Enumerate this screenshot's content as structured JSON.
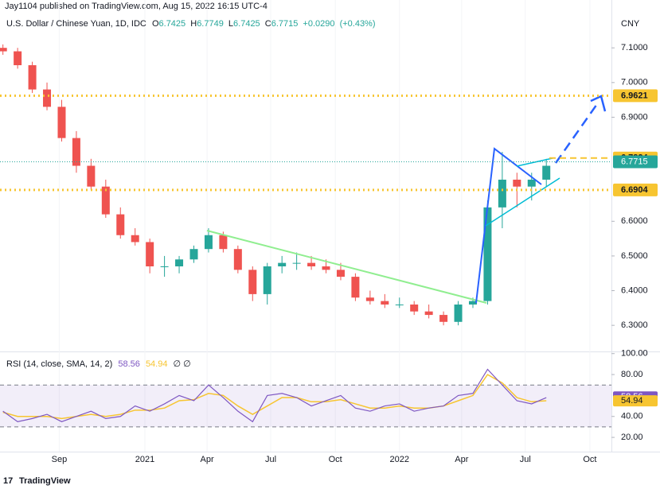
{
  "chart_data": {
    "type": "candlestick",
    "publisher": "Jay1104 published on TradingView.com, Aug 15, 2022 16:15 UTC-4",
    "symbol": "U.S. Dollar / Chinese Yuan, 1D, IDC",
    "ohlc_letters": [
      "O",
      "H",
      "L",
      "C"
    ],
    "last": {
      "open": 6.7425,
      "high": 6.7749,
      "low": 6.7425,
      "close": 6.7715,
      "change": {
        "value": 0.029,
        "label": "+0.0290"
      },
      "change_pct": {
        "value": 0.43,
        "label": "(+0.43%)"
      }
    },
    "currency": "CNY",
    "footer": "TradingView",
    "x": [
      -29,
      -26,
      -23,
      -20,
      -17,
      -14,
      -11,
      -8,
      -5,
      -2,
      1,
      4,
      7,
      10,
      13,
      16,
      19,
      22,
      25,
      28,
      31,
      34,
      37,
      40,
      43,
      46,
      49,
      52,
      55,
      58,
      61,
      64,
      67,
      70,
      73,
      76,
      79,
      82
    ],
    "open": [
      7.1,
      7.09,
      7.05,
      6.98,
      6.93,
      6.84,
      6.76,
      6.7,
      6.62,
      6.56,
      6.54,
      6.47,
      6.47,
      6.49,
      6.52,
      6.56,
      6.52,
      6.46,
      6.39,
      6.47,
      6.48,
      6.48,
      6.47,
      6.46,
      6.44,
      6.38,
      6.37,
      6.36,
      6.36,
      6.34,
      6.33,
      6.31,
      6.36,
      6.37,
      6.64,
      6.72,
      6.7,
      6.72
    ],
    "high": [
      7.11,
      7.1,
      7.06,
      7.0,
      6.95,
      6.86,
      6.78,
      6.72,
      6.64,
      6.58,
      6.55,
      6.5,
      6.5,
      6.53,
      6.58,
      6.57,
      6.53,
      6.47,
      6.48,
      6.5,
      6.51,
      6.5,
      6.49,
      6.48,
      6.45,
      6.4,
      6.39,
      6.38,
      6.37,
      6.36,
      6.34,
      6.37,
      6.38,
      6.66,
      6.8,
      6.74,
      6.74,
      6.78
    ],
    "low": [
      7.08,
      7.04,
      6.97,
      6.92,
      6.83,
      6.74,
      6.69,
      6.61,
      6.55,
      6.53,
      6.45,
      6.44,
      6.45,
      6.48,
      6.51,
      6.51,
      6.45,
      6.37,
      6.36,
      6.45,
      6.46,
      6.46,
      6.45,
      6.43,
      6.37,
      6.36,
      6.35,
      6.35,
      6.33,
      6.32,
      6.3,
      6.3,
      6.35,
      6.36,
      6.58,
      6.64,
      6.66,
      6.7
    ],
    "close": [
      7.09,
      7.05,
      6.98,
      6.93,
      6.84,
      6.76,
      6.7,
      6.62,
      6.56,
      6.54,
      6.47,
      6.47,
      6.49,
      6.52,
      6.56,
      6.52,
      6.46,
      6.39,
      6.47,
      6.48,
      6.48,
      6.47,
      6.46,
      6.44,
      6.38,
      6.37,
      6.36,
      6.36,
      6.34,
      6.33,
      6.31,
      6.36,
      6.37,
      6.64,
      6.72,
      6.7,
      6.72,
      6.76
    ],
    "up_color": "#26a69a",
    "down_color": "#ef5350",
    "xlim": [
      -29.6,
      95.3
    ],
    "xticks": [
      {
        "value": -17.5,
        "label": "Sep"
      },
      {
        "value": 0,
        "label": "2021"
      },
      {
        "value": 12.7,
        "label": "Apr"
      },
      {
        "value": 25.7,
        "label": "Jul"
      },
      {
        "value": 38.9,
        "label": "Oct"
      },
      {
        "value": 52,
        "label": "2022"
      },
      {
        "value": 64.7,
        "label": "Apr"
      },
      {
        "value": 77.7,
        "label": "Jul"
      },
      {
        "value": 90.9,
        "label": "Oct"
      }
    ],
    "ylim": [
      6.227,
      7.238
    ],
    "yticks": [
      {
        "value": 7.1,
        "label": "7.1000"
      },
      {
        "value": 7.0,
        "label": "7.0000"
      },
      {
        "value": 6.9,
        "label": "6.9000"
      },
      {
        "value": 6.6,
        "label": "6.6000"
      },
      {
        "value": 6.5,
        "label": "6.5000"
      },
      {
        "value": 6.4,
        "label": "6.4000"
      },
      {
        "value": 6.3,
        "label": "6.3000"
      }
    ],
    "levels": [
      {
        "value": 6.9621,
        "color": "#f7c531",
        "style": "dotted"
      },
      {
        "value": 6.7824,
        "color": "#f7c531",
        "style": "dashed"
      },
      {
        "value": 6.6904,
        "color": "#f7c531",
        "style": "dotted"
      }
    ],
    "current_price": {
      "value": 6.7715,
      "color": "#26a69a"
    },
    "rsi": {
      "title": "RSI (14, close, SMA, 14, 2)",
      "value": 58.56,
      "sma_value": 54.94,
      "extra": "∅ ∅",
      "color": "#7e57c2",
      "sma_color": "#f7c531",
      "values": [
        45,
        35,
        38,
        42,
        35,
        40,
        45,
        38,
        40,
        50,
        45,
        52,
        60,
        55,
        70,
        58,
        45,
        35,
        60,
        62,
        58,
        50,
        55,
        60,
        48,
        45,
        50,
        52,
        45,
        48,
        50,
        60,
        62,
        85,
        70,
        55,
        52,
        58
      ],
      "sma": [
        44,
        40,
        40,
        40,
        38,
        40,
        42,
        40,
        42,
        46,
        46,
        48,
        55,
        56,
        62,
        60,
        50,
        42,
        50,
        58,
        58,
        54,
        54,
        56,
        52,
        48,
        48,
        50,
        48,
        48,
        50,
        55,
        60,
        80,
        72,
        58,
        54,
        55
      ],
      "ylim": [
        6.4,
        101.3
      ],
      "yticks": [
        {
          "value": 100,
          "label": "100.00"
        },
        {
          "value": 80,
          "label": "80.00"
        },
        {
          "value": 40,
          "label": "40.00"
        },
        {
          "value": 20,
          "label": "20.00"
        }
      ],
      "bands": [
        70,
        30
      ]
    }
  }
}
